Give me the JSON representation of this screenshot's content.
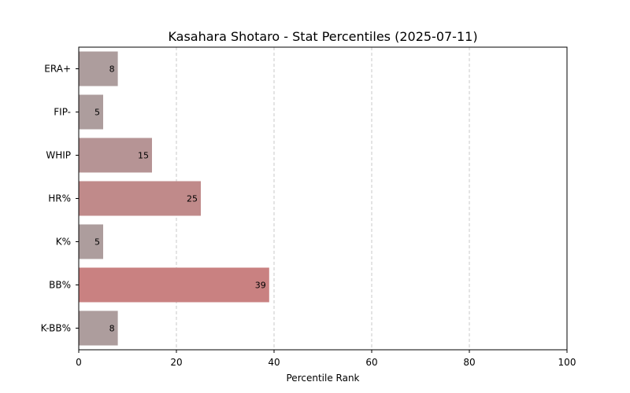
{
  "chart_data": {
    "type": "bar",
    "orientation": "horizontal",
    "title": "Kasahara Shotaro - Stat Percentiles (2025-07-11)",
    "xlabel": "Percentile Rank",
    "ylabel": "",
    "xlim": [
      0,
      100
    ],
    "xticks": [
      0,
      20,
      40,
      60,
      80,
      100
    ],
    "grid": "vertical dashed",
    "categories": [
      "ERA+",
      "FIP-",
      "WHIP",
      "HR%",
      "K%",
      "BB%",
      "K-BB%"
    ],
    "values": [
      8,
      5,
      15,
      25,
      5,
      39,
      8
    ],
    "colors": [
      "#ad9d9d",
      "#ad9d9d",
      "#b69495",
      "#c08a8a",
      "#ad9d9d",
      "#c98181",
      "#ad9d9d"
    ]
  }
}
